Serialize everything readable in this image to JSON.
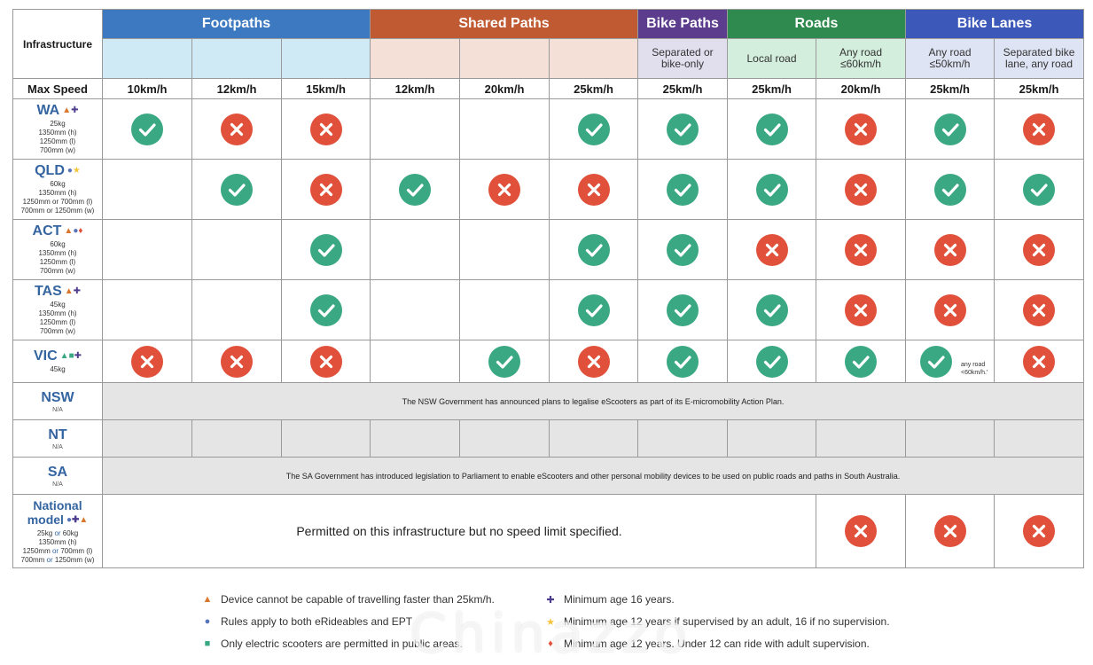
{
  "header": {
    "infrastructure_label": "Infrastructure",
    "categories": [
      {
        "label": "Footpaths",
        "color": "#3c79c0"
      },
      {
        "label": "Shared Paths",
        "color": "#bf5a33"
      },
      {
        "label": "Bike Paths",
        "color": "#5c3c8c"
      },
      {
        "label": "Roads",
        "color": "#2f8a4f"
      },
      {
        "label": "Bike Lanes",
        "color": "#3c58b8"
      }
    ],
    "subheaders": [
      "",
      "",
      "",
      "",
      "",
      "",
      "Separated or bike-only",
      "Local road",
      "Any road ≤60km/h",
      "Any road ≤50km/h",
      "Separated bike lane, any road"
    ],
    "subheader_colors": [
      "#cfeaf4",
      "#cfeaf4",
      "#cfeaf4",
      "#f4e0d6",
      "#f4e0d6",
      "#f4e0d6",
      "#e1dfee",
      "#d3eedc",
      "#d3eedc",
      "#dfe4f4",
      "#dfe4f4"
    ],
    "max_speed_label": "Max Speed",
    "speeds": [
      "10km/h",
      "12km/h",
      "15km/h",
      "12km/h",
      "20km/h",
      "25km/h",
      "25km/h",
      "25km/h",
      "20km/h",
      "25km/h",
      "25km/h"
    ]
  },
  "states": [
    {
      "name": "WA",
      "symbols": [
        "triangle-orange",
        "cross-purple"
      ],
      "specs": [
        "25kg",
        "1350mm (h)",
        "1250mm (l)",
        "700mm (w)"
      ],
      "cells": [
        "yes",
        "no",
        "no",
        "",
        "",
        "yes",
        "yes",
        "yes",
        "no",
        "yes",
        "no"
      ]
    },
    {
      "name": "QLD",
      "symbols": [
        "dot-blue",
        "star-yellow"
      ],
      "specs": [
        "60kg",
        "1350mm (h)",
        "1250mm or 700mm (l)",
        "700mm or 1250mm (w)"
      ],
      "cells": [
        "",
        "yes",
        "no",
        "yes",
        "no",
        "no",
        "yes",
        "yes",
        "no",
        "yes",
        "yes"
      ]
    },
    {
      "name": "ACT",
      "symbols": [
        "triangle-orange",
        "dot-blue",
        "diamond-red"
      ],
      "specs": [
        "60kg",
        "1350mm (h)",
        "1250mm (l)",
        "700mm (w)"
      ],
      "cells": [
        "",
        "",
        "yes",
        "",
        "",
        "yes",
        "yes",
        "no",
        "no",
        "no",
        "no"
      ]
    },
    {
      "name": "TAS",
      "symbols": [
        "triangle-orange",
        "cross-purple"
      ],
      "specs": [
        "45kg",
        "1350mm (h)",
        "1250mm (l)",
        "700mm (w)"
      ],
      "cells": [
        "",
        "",
        "yes",
        "",
        "",
        "yes",
        "yes",
        "yes",
        "no",
        "no",
        "no"
      ]
    },
    {
      "name": "VIC",
      "symbols": [
        "triangle-green",
        "square-green",
        "cross-purple"
      ],
      "specs": [
        "45kg"
      ],
      "cells": [
        "no",
        "no",
        "no",
        "",
        "yes",
        "no",
        "yes",
        "yes",
        "yes",
        "yes-note",
        "no"
      ],
      "note": "any road <60km/h.'"
    }
  ],
  "nsw": {
    "name": "NSW",
    "na": "N/A",
    "banner": "The NSW Government has announced plans to legalise eScooters as part of its E-micromobility Action Plan."
  },
  "nt": {
    "name": "NT",
    "na": "N/A"
  },
  "sa": {
    "name": "SA",
    "na": "N/A",
    "banner": "The SA Government has introduced legislation to Parliament to enable eScooters and other personal mobility devices to be used on public roads and paths in South Australia."
  },
  "national": {
    "name_line1": "National",
    "name_line2": "model",
    "symbols": [
      "dot-blue",
      "cross-purple",
      "triangle-orange"
    ],
    "specs_1": "25kg",
    "specs_1_or": "or",
    "specs_1b": "60kg",
    "specs_2": "1350mm (h)",
    "specs_3": "1250mm",
    "specs_3_or": "or",
    "specs_3b": "700mm (l)",
    "specs_4": "700mm",
    "specs_4_or": "or",
    "specs_4b": "1250mm (w)",
    "text": "Permitted on this infrastructure but no speed limit specified.",
    "cells": [
      "no",
      "no",
      "no"
    ]
  },
  "legend": [
    {
      "symbol": "triangle-orange",
      "text": "Device cannot be capable of travelling faster than 25km/h."
    },
    {
      "symbol": "dot-blue",
      "text": "Rules apply to both eRideables and EPT"
    },
    {
      "symbol": "square-green",
      "text": "Only electric scooters are permitted in public areas."
    },
    {
      "symbol": "cross-purple",
      "text": "Minimum age 16 years."
    },
    {
      "symbol": "star-yellow",
      "text": "Minimum age 12 years if supervised by an adult, 16 if no supervision."
    },
    {
      "symbol": "diamond-red",
      "text": "Minimum age 12 years. Under 12 can ride with adult supervision."
    }
  ],
  "watermark": "Chinazzo"
}
